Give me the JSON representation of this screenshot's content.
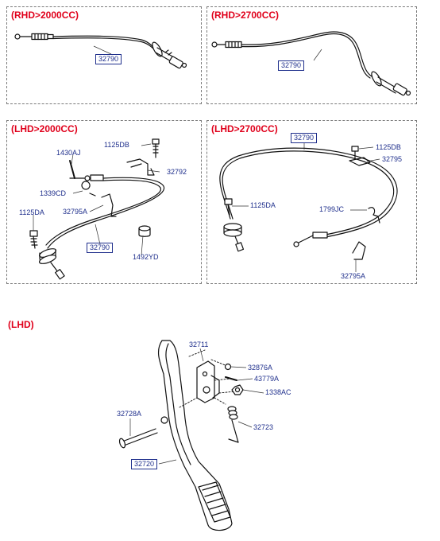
{
  "panels": {
    "rhd2000": {
      "title": "(RHD>2000CC)"
    },
    "rhd2700": {
      "title": "(RHD>2700CC)"
    },
    "lhd2000": {
      "title": "(LHD>2000CC)"
    },
    "lhd2700": {
      "title": "(LHD>2700CC)"
    },
    "lhd": {
      "title": "(LHD)"
    }
  },
  "parts": {
    "rhd2000_cable": "32790",
    "rhd2700_cable": "32790",
    "lhd2000": {
      "p1125db": "1125DB",
      "p1430aj": "1430AJ",
      "p32792": "32792",
      "p1339cd": "1339CD",
      "p32795a": "32795A",
      "p1125da": "1125DA",
      "p32790": "32790",
      "p1492yd": "1492YD"
    },
    "lhd2700": {
      "p32790": "32790",
      "p1125db": "1125DB",
      "p32795": "32795",
      "p1125da": "1125DA",
      "p1799jc": "1799JC",
      "p32795a": "32795A"
    },
    "lhd": {
      "p32711": "32711",
      "p32876a": "32876A",
      "p43779a": "43779A",
      "p1338ac": "1338AC",
      "p32728a": "32728A",
      "p32723": "32723",
      "p32720": "32720"
    }
  }
}
